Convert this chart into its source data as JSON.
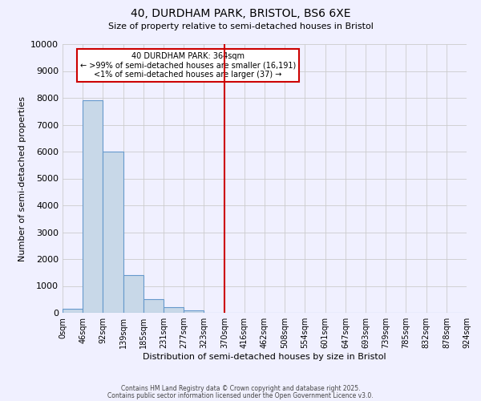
{
  "title_line1": "40, DURDHAM PARK, BRISTOL, BS6 6XE",
  "title_line2": "Size of property relative to semi-detached houses in Bristol",
  "xlabel": "Distribution of semi-detached houses by size in Bristol",
  "ylabel": "Number of semi-detached properties",
  "bar_edges": [
    0,
    46,
    92,
    139,
    185,
    231,
    277,
    323,
    370,
    416,
    462,
    508,
    554,
    601,
    647,
    693,
    739,
    785,
    832,
    878,
    924
  ],
  "bar_heights": [
    150,
    7900,
    6000,
    1400,
    500,
    200,
    100,
    0,
    0,
    0,
    0,
    0,
    0,
    0,
    0,
    0,
    0,
    0,
    0,
    0
  ],
  "bar_color": "#c8d8e8",
  "bar_edge_color": "#6699cc",
  "vline_x": 370,
  "vline_color": "#cc0000",
  "annotation_title": "40 DURDHAM PARK: 364sqm",
  "annotation_line1": "← >99% of semi-detached houses are smaller (16,191)",
  "annotation_line2": "<1% of semi-detached houses are larger (37) →",
  "annotation_box_color": "#cc0000",
  "ylim": [
    0,
    10000
  ],
  "yticks": [
    0,
    1000,
    2000,
    3000,
    4000,
    5000,
    6000,
    7000,
    8000,
    9000,
    10000
  ],
  "ytick_labels": [
    "0",
    "1000",
    "2000",
    "3000",
    "4000",
    "5000",
    "6000",
    "7000",
    "8000",
    "9000",
    "10000"
  ],
  "xtick_labels": [
    "0sqm",
    "46sqm",
    "92sqm",
    "139sqm",
    "185sqm",
    "231sqm",
    "277sqm",
    "323sqm",
    "370sqm",
    "416sqm",
    "462sqm",
    "508sqm",
    "554sqm",
    "601sqm",
    "647sqm",
    "693sqm",
    "739sqm",
    "785sqm",
    "832sqm",
    "878sqm",
    "924sqm"
  ],
  "grid_color": "#cccccc",
  "bg_color": "#f0f0ff",
  "footer_line1": "Contains HM Land Registry data © Crown copyright and database right 2025.",
  "footer_line2": "Contains public sector information licensed under the Open Government Licence v3.0."
}
